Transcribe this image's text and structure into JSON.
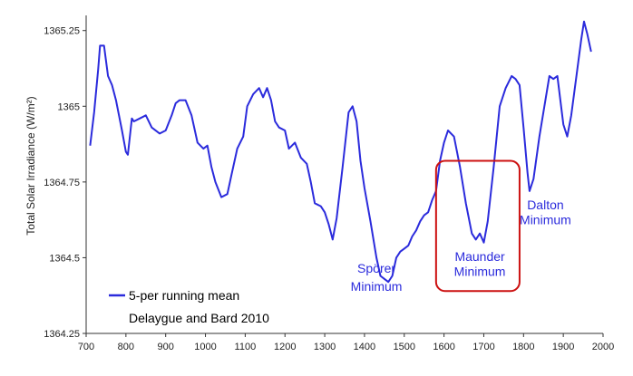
{
  "chart_data": {
    "type": "line",
    "title": "",
    "xlabel": "",
    "ylabel": "Total Solar Irradiance (W/m²)",
    "xlim": [
      700,
      2000
    ],
    "ylim": [
      1364.25,
      1365.3
    ],
    "x_ticks": [
      "700",
      "800",
      "900",
      "1000",
      "1100",
      "1200",
      "1300",
      "1400",
      "1500",
      "1600",
      "1700",
      "1800",
      "1900",
      "2000"
    ],
    "y_ticks": [
      "1364.25",
      "1364.5",
      "1364.75",
      "1365",
      "1365.25"
    ],
    "grid": false,
    "legend": {
      "position": "bottom-left",
      "entry": "5-per running mean",
      "source": "Delaygue and Bard 2010"
    },
    "series": [
      {
        "name": "5-per running mean",
        "color": "#2b2bdc",
        "points": [
          [
            710,
            1364.87
          ],
          [
            720,
            1364.98
          ],
          [
            730,
            1365.12
          ],
          [
            735,
            1365.2
          ],
          [
            745,
            1365.2
          ],
          [
            755,
            1365.1
          ],
          [
            765,
            1365.07
          ],
          [
            775,
            1365.02
          ],
          [
            790,
            1364.92
          ],
          [
            800,
            1364.85
          ],
          [
            805,
            1364.84
          ],
          [
            815,
            1364.96
          ],
          [
            820,
            1364.95
          ],
          [
            835,
            1364.96
          ],
          [
            850,
            1364.97
          ],
          [
            865,
            1364.93
          ],
          [
            885,
            1364.91
          ],
          [
            900,
            1364.92
          ],
          [
            915,
            1364.97
          ],
          [
            925,
            1365.01
          ],
          [
            935,
            1365.02
          ],
          [
            950,
            1365.02
          ],
          [
            965,
            1364.97
          ],
          [
            980,
            1364.88
          ],
          [
            995,
            1364.86
          ],
          [
            1005,
            1364.87
          ],
          [
            1015,
            1364.8
          ],
          [
            1025,
            1364.75
          ],
          [
            1040,
            1364.7
          ],
          [
            1055,
            1364.71
          ],
          [
            1065,
            1364.77
          ],
          [
            1080,
            1364.86
          ],
          [
            1095,
            1364.9
          ],
          [
            1105,
            1365.0
          ],
          [
            1120,
            1365.04
          ],
          [
            1135,
            1365.06
          ],
          [
            1145,
            1365.03
          ],
          [
            1155,
            1365.06
          ],
          [
            1165,
            1365.02
          ],
          [
            1175,
            1364.95
          ],
          [
            1185,
            1364.93
          ],
          [
            1200,
            1364.92
          ],
          [
            1210,
            1364.86
          ],
          [
            1225,
            1364.88
          ],
          [
            1240,
            1364.83
          ],
          [
            1255,
            1364.81
          ],
          [
            1265,
            1364.75
          ],
          [
            1275,
            1364.68
          ],
          [
            1290,
            1364.67
          ],
          [
            1300,
            1364.65
          ],
          [
            1310,
            1364.61
          ],
          [
            1320,
            1364.56
          ],
          [
            1330,
            1364.63
          ],
          [
            1345,
            1364.8
          ],
          [
            1360,
            1364.98
          ],
          [
            1370,
            1365.0
          ],
          [
            1380,
            1364.95
          ],
          [
            1390,
            1364.82
          ],
          [
            1400,
            1364.73
          ],
          [
            1415,
            1364.62
          ],
          [
            1430,
            1364.5
          ],
          [
            1440,
            1364.44
          ],
          [
            1450,
            1364.43
          ],
          [
            1460,
            1364.42
          ],
          [
            1470,
            1364.44
          ],
          [
            1480,
            1364.5
          ],
          [
            1490,
            1364.52
          ],
          [
            1500,
            1364.53
          ],
          [
            1510,
            1364.54
          ],
          [
            1520,
            1364.57
          ],
          [
            1530,
            1364.59
          ],
          [
            1540,
            1364.62
          ],
          [
            1550,
            1364.64
          ],
          [
            1560,
            1364.65
          ],
          [
            1570,
            1364.69
          ],
          [
            1580,
            1364.72
          ],
          [
            1590,
            1364.82
          ],
          [
            1600,
            1364.88
          ],
          [
            1610,
            1364.92
          ],
          [
            1625,
            1364.9
          ],
          [
            1640,
            1364.8
          ],
          [
            1655,
            1364.68
          ],
          [
            1670,
            1364.58
          ],
          [
            1680,
            1364.56
          ],
          [
            1690,
            1364.58
          ],
          [
            1700,
            1364.55
          ],
          [
            1710,
            1364.62
          ],
          [
            1725,
            1364.8
          ],
          [
            1740,
            1365.0
          ],
          [
            1755,
            1365.06
          ],
          [
            1770,
            1365.1
          ],
          [
            1780,
            1365.09
          ],
          [
            1790,
            1365.07
          ],
          [
            1800,
            1364.93
          ],
          [
            1810,
            1364.78
          ],
          [
            1815,
            1364.72
          ],
          [
            1825,
            1364.76
          ],
          [
            1840,
            1364.9
          ],
          [
            1855,
            1365.02
          ],
          [
            1865,
            1365.1
          ],
          [
            1875,
            1365.09
          ],
          [
            1885,
            1365.1
          ],
          [
            1900,
            1364.94
          ],
          [
            1910,
            1364.9
          ],
          [
            1920,
            1364.97
          ],
          [
            1935,
            1365.12
          ],
          [
            1945,
            1365.22
          ],
          [
            1952,
            1365.28
          ],
          [
            1960,
            1365.24
          ],
          [
            1970,
            1365.18
          ]
        ]
      }
    ],
    "annotations": [
      {
        "lines": [
          "Spörer",
          "Minimum"
        ],
        "x": 1430,
        "y1": 1364.45,
        "y2": 1364.39
      },
      {
        "lines": [
          "Maunder",
          "Minimum"
        ],
        "x": 1690,
        "y1": 1364.49,
        "y2": 1364.44
      },
      {
        "lines": [
          "Dalton",
          "Minimum"
        ],
        "x": 1855,
        "y1": 1364.66,
        "y2": 1364.61
      }
    ],
    "highlight_box": {
      "x0": 1580,
      "x1": 1790,
      "y0": 1364.82,
      "y1": 1364.39,
      "color": "#cc1111"
    }
  }
}
